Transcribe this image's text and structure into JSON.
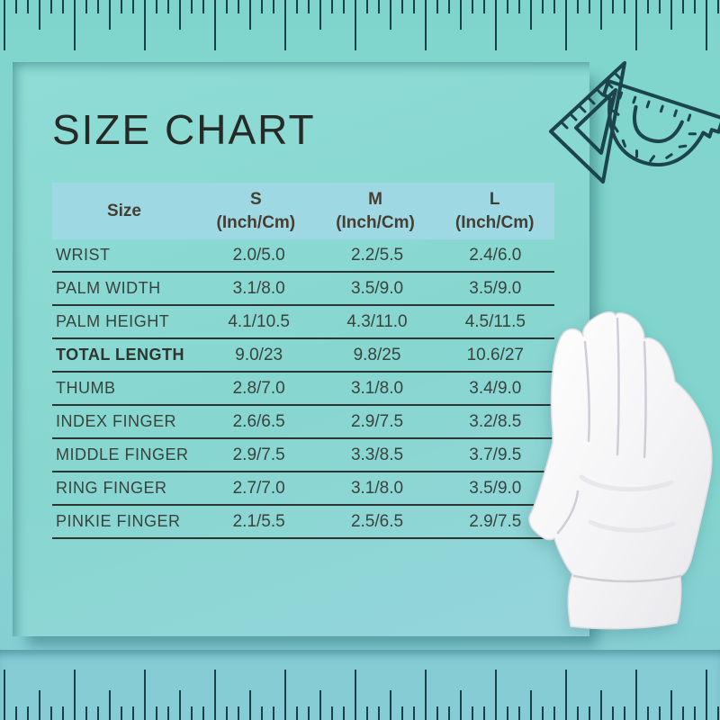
{
  "page": {
    "title": "SIZE CHART"
  },
  "table": {
    "header": {
      "size_label": "Size",
      "columns": [
        {
          "size": "S",
          "unit": "(Inch/Cm)"
        },
        {
          "size": "M",
          "unit": "(Inch/Cm)"
        },
        {
          "size": "L",
          "unit": "(Inch/Cm)"
        }
      ]
    },
    "rows": [
      {
        "label": "WRIST",
        "s": "2.0/5.0",
        "m": "2.2/5.5",
        "l": "2.4/6.0"
      },
      {
        "label": "PALM WIDTH",
        "s": "3.1/8.0",
        "m": "3.5/9.0",
        "l": "3.5/9.0"
      },
      {
        "label": "PALM HEIGHT",
        "s": "4.1/10.5",
        "m": "4.3/11.0",
        "l": "4.5/11.5"
      },
      {
        "label": "TOTAL LENGTH",
        "s": "9.0/23",
        "m": "9.8/25",
        "l": "10.6/27"
      },
      {
        "label": "THUMB",
        "s": "2.8/7.0",
        "m": "3.1/8.0",
        "l": "3.4/9.0"
      },
      {
        "label": "INDEX FINGER",
        "s": "2.6/6.5",
        "m": "2.9/7.5",
        "l": "3.2/8.5"
      },
      {
        "label": "MIDDLE FINGER",
        "s": "2.9/7.5",
        "m": "3.3/8.5",
        "l": "3.7/9.5"
      },
      {
        "label": "RING FINGER",
        "s": "2.7/7.0",
        "m": "3.1/8.0",
        "l": "3.5/9.0"
      },
      {
        "label": "PINKIE FINGER",
        "s": "2.1/5.5",
        "m": "2.5/6.5",
        "l": "2.9/7.5"
      }
    ]
  },
  "chart_data": {
    "type": "table",
    "title": "SIZE CHART",
    "columns": [
      "Size",
      "S (Inch/Cm)",
      "M (Inch/Cm)",
      "L (Inch/Cm)"
    ],
    "rows": [
      [
        "WRIST",
        "2.0/5.0",
        "2.2/5.5",
        "2.4/6.0"
      ],
      [
        "PALM WIDTH",
        "3.1/8.0",
        "3.5/9.0",
        "3.5/9.0"
      ],
      [
        "PALM HEIGHT",
        "4.1/10.5",
        "4.3/11.0",
        "4.5/11.5"
      ],
      [
        "TOTAL LENGTH",
        "9.0/23",
        "9.8/25",
        "10.6/27"
      ],
      [
        "THUMB",
        "2.8/7.0",
        "3.1/8.0",
        "3.4/9.0"
      ],
      [
        "INDEX FINGER",
        "2.6/6.5",
        "2.9/7.5",
        "3.2/8.5"
      ],
      [
        "MIDDLE FINGER",
        "2.9/7.5",
        "3.3/8.5",
        "3.7/9.5"
      ],
      [
        "RING FINGER",
        "2.7/7.0",
        "3.1/8.0",
        "3.5/9.0"
      ],
      [
        "PINKIE FINGER",
        "2.1/5.5",
        "2.5/6.5",
        "2.9/7.5"
      ]
    ]
  },
  "decor": {
    "icons": [
      "set-square-icon",
      "protractor-icon",
      "ruler-top",
      "ruler-bottom"
    ],
    "glove": "white-cotton-glove-photo",
    "colors": {
      "background_teal": "#82d5cd",
      "background_bottom": "#85ccd5",
      "card_teal": "#8cdbd4",
      "header_blue": "#9ed8e3",
      "divider_dark": "#2c3531",
      "ruler_tick": "#17424b",
      "icon_stroke": "#1b444d",
      "text_dark": "#39433e",
      "title_dark": "#252a27"
    }
  }
}
